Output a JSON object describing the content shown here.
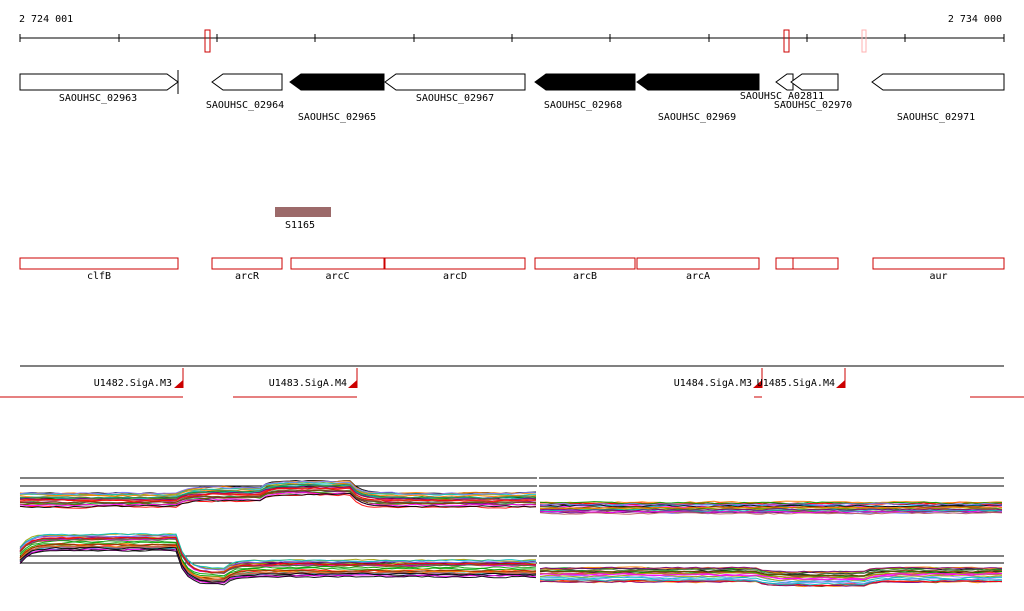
{
  "coords": {
    "start": "2 724 001",
    "end": "2 734 000"
  },
  "colors": {
    "red": "#cc0000",
    "black": "#000000",
    "feature_brown": "#9c6a6a",
    "trace_palette": [
      "#000000",
      "#ff0000",
      "#00a000",
      "#7f7fff",
      "#7f3f00",
      "#ff7f00",
      "#a0a000",
      "#ff00ff",
      "#00bfbf",
      "#7f007f",
      "#3f7f3f",
      "#bf5f5f"
    ]
  },
  "genes": [
    {
      "label": "SAOUHSC_02963",
      "strand": "+",
      "filled": false
    },
    {
      "label": "SAOUHSC_02964",
      "strand": "-",
      "filled": false
    },
    {
      "label": "SAOUHSC_02965",
      "strand": "-",
      "filled": true
    },
    {
      "label": "SAOUHSC_02967",
      "strand": "-",
      "filled": false
    },
    {
      "label": "SAOUHSC_02968",
      "strand": "-",
      "filled": true
    },
    {
      "label": "SAOUHSC_02969",
      "strand": "-",
      "filled": true
    },
    {
      "label": "SAOUHSC_A02811",
      "strand": "-",
      "filled": false
    },
    {
      "label": "SAOUHSC_02970",
      "strand": "-",
      "filled": false
    },
    {
      "label": "SAOUHSC_02971",
      "strand": "-",
      "filled": false
    }
  ],
  "feature": {
    "label": "S1165"
  },
  "gene_names": [
    "clfB",
    "arcR",
    "arcC",
    "arcD",
    "arcB",
    "arcA",
    "",
    "",
    "aur"
  ],
  "promoters": [
    "U1482.SigA.M3",
    "U1483.SigA.M4",
    "U1484.SigA.M3",
    "U1485.SigA.M4"
  ]
}
